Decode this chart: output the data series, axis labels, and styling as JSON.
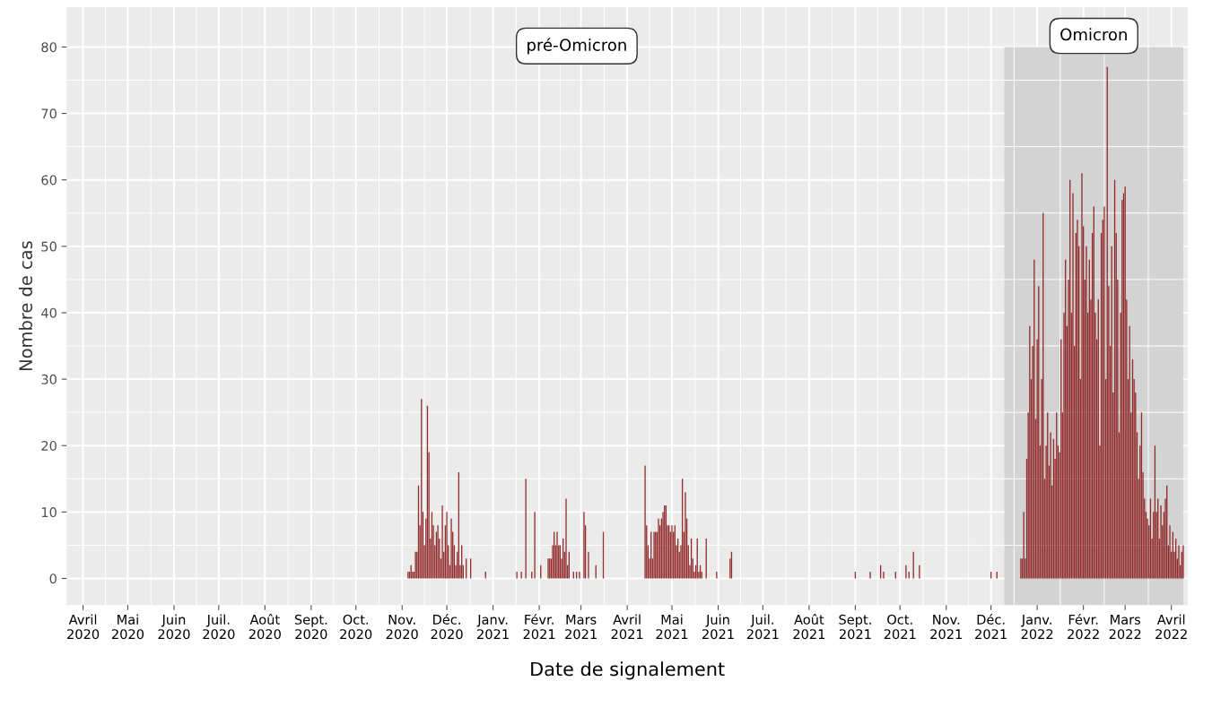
{
  "chart_data": {
    "type": "bar",
    "xlabel": "Date de signalement",
    "ylabel": "Nombre de cas",
    "annotations": [
      "pré-Omicron"
    ],
    "series": [
      {
        "color": "#8b1a1a",
        "x": [
          "2020-11-05",
          "2020-11-06",
          "2020-11-07",
          "2020-11-08",
          "2020-11-09",
          "2020-11-10",
          "2020-11-11",
          "2020-11-12",
          "2020-11-13",
          "2020-11-14",
          "2020-11-15",
          "2020-11-16",
          "2020-11-17",
          "2020-11-18",
          "2020-11-19",
          "2020-11-20",
          "2020-11-21",
          "2020-11-22",
          "2020-11-23",
          "2020-11-24",
          "2020-11-25",
          "2020-11-26",
          "2020-11-27",
          "2020-11-28",
          "2020-11-29",
          "2020-11-30",
          "2020-12-01",
          "2020-12-02",
          "2020-12-03",
          "2020-12-04",
          "2020-12-05",
          "2020-12-06",
          "2020-12-07",
          "2020-12-08",
          "2020-12-09",
          "2020-12-10",
          "2020-12-11",
          "2020-12-12",
          "2020-12-14",
          "2020-12-17",
          "2020-12-27",
          "2021-01-17",
          "2021-01-20",
          "2021-01-23",
          "2021-01-27",
          "2021-01-29",
          "2021-02-02",
          "2021-02-07",
          "2021-02-08",
          "2021-02-09",
          "2021-02-10",
          "2021-02-11",
          "2021-02-12",
          "2021-02-13",
          "2021-02-14",
          "2021-02-15",
          "2021-02-16",
          "2021-02-17",
          "2021-02-18",
          "2021-02-19",
          "2021-02-20",
          "2021-02-21",
          "2021-02-24",
          "2021-02-26",
          "2021-02-28",
          "2021-03-03",
          "2021-03-04",
          "2021-03-06",
          "2021-03-11",
          "2021-03-16",
          "2021-04-13",
          "2021-04-14",
          "2021-04-15",
          "2021-04-16",
          "2021-04-17",
          "2021-04-18",
          "2021-04-19",
          "2021-04-20",
          "2021-04-21",
          "2021-04-22",
          "2021-04-23",
          "2021-04-24",
          "2021-04-25",
          "2021-04-26",
          "2021-04-27",
          "2021-04-28",
          "2021-04-29",
          "2021-04-30",
          "2021-05-01",
          "2021-05-02",
          "2021-05-03",
          "2021-05-04",
          "2021-05-05",
          "2021-05-06",
          "2021-05-07",
          "2021-05-08",
          "2021-05-09",
          "2021-05-10",
          "2021-05-11",
          "2021-05-12",
          "2021-05-13",
          "2021-05-14",
          "2021-05-15",
          "2021-05-16",
          "2021-05-17",
          "2021-05-18",
          "2021-05-19",
          "2021-05-20",
          "2021-05-21",
          "2021-05-24",
          "2021-05-31",
          "2021-06-09",
          "2021-06-10",
          "2021-09-01",
          "2021-09-11",
          "2021-09-18",
          "2021-09-20",
          "2021-09-28",
          "2021-10-05",
          "2021-10-07",
          "2021-10-10",
          "2021-10-14",
          "2021-12-01",
          "2021-12-05",
          "2021-12-21",
          "2021-12-22",
          "2021-12-23",
          "2021-12-24",
          "2021-12-25",
          "2021-12-26",
          "2021-12-27",
          "2021-12-28",
          "2021-12-29",
          "2021-12-30",
          "2021-12-31",
          "2022-01-01",
          "2022-01-02",
          "2022-01-03",
          "2022-01-04",
          "2022-01-05",
          "2022-01-06",
          "2022-01-07",
          "2022-01-08",
          "2022-01-09",
          "2022-01-10",
          "2022-01-11",
          "2022-01-12",
          "2022-01-13",
          "2022-01-14",
          "2022-01-15",
          "2022-01-16",
          "2022-01-17",
          "2022-01-18",
          "2022-01-19",
          "2022-01-20",
          "2022-01-21",
          "2022-01-22",
          "2022-01-23",
          "2022-01-24",
          "2022-01-25",
          "2022-01-26",
          "2022-01-27",
          "2022-01-28",
          "2022-01-29",
          "2022-01-30",
          "2022-01-31",
          "2022-02-01",
          "2022-02-02",
          "2022-02-03",
          "2022-02-04",
          "2022-02-05",
          "2022-02-06",
          "2022-02-07",
          "2022-02-08",
          "2022-02-09",
          "2022-02-10",
          "2022-02-11",
          "2022-02-12",
          "2022-02-13",
          "2022-02-14",
          "2022-02-15",
          "2022-02-16",
          "2022-02-17",
          "2022-02-18",
          "2022-02-19",
          "2022-02-20",
          "2022-02-21",
          "2022-02-22",
          "2022-02-23",
          "2022-02-24",
          "2022-02-25",
          "2022-02-26",
          "2022-02-27",
          "2022-02-28",
          "2022-03-01",
          "2022-03-02",
          "2022-03-03",
          "2022-03-04",
          "2022-03-05",
          "2022-03-06",
          "2022-03-07",
          "2022-03-08",
          "2022-03-09",
          "2022-03-10",
          "2022-03-11",
          "2022-03-12",
          "2022-03-13",
          "2022-03-14",
          "2022-03-15",
          "2022-03-16",
          "2022-03-17",
          "2022-03-18",
          "2022-03-19",
          "2022-03-20",
          "2022-03-21",
          "2022-03-22",
          "2022-03-23",
          "2022-03-24",
          "2022-03-25",
          "2022-03-26",
          "2022-03-27",
          "2022-03-28",
          "2022-03-29",
          "2022-03-30",
          "2022-03-31",
          "2022-04-01",
          "2022-04-02",
          "2022-04-03",
          "2022-04-04",
          "2022-04-05",
          "2022-04-06",
          "2022-04-07",
          "2022-04-08",
          "2022-04-09"
        ],
        "values": [
          1,
          1,
          2,
          1,
          1,
          4,
          4,
          14,
          8,
          27,
          10,
          5,
          9,
          26,
          19,
          6,
          10,
          8,
          5,
          7,
          8,
          6,
          3,
          11,
          4,
          8,
          10,
          5,
          2,
          9,
          7,
          5,
          2,
          4,
          16,
          2,
          5,
          2,
          3,
          3,
          1,
          1,
          1,
          15,
          1,
          10,
          2,
          3,
          3,
          3,
          5,
          7,
          5,
          7,
          5,
          5,
          3,
          6,
          4,
          12,
          2,
          4,
          1,
          1,
          1,
          10,
          8,
          4,
          2,
          7,
          17,
          8,
          5,
          3,
          7,
          3,
          7,
          7,
          7,
          9,
          8,
          9,
          10,
          11,
          11,
          8,
          8,
          7,
          8,
          7,
          8,
          5,
          6,
          4,
          5,
          15,
          7,
          13,
          9,
          5,
          2,
          6,
          3,
          1,
          2,
          6,
          1,
          2,
          1,
          6,
          1,
          3,
          4,
          1,
          1,
          2,
          1,
          1,
          2,
          1,
          4,
          2,
          1,
          1,
          3,
          3,
          10,
          3,
          18,
          25,
          38,
          30,
          35,
          48,
          24,
          36,
          44,
          20,
          30,
          55,
          15,
          20,
          25,
          17,
          22,
          14,
          21,
          18,
          25,
          20,
          19,
          36,
          25,
          40,
          48,
          38,
          45,
          60,
          40,
          58,
          35,
          52,
          54,
          50,
          30,
          61,
          53,
          45,
          50,
          40,
          48,
          42,
          52,
          56,
          40,
          36,
          42,
          20,
          52,
          54,
          56,
          30,
          77,
          44,
          35,
          50,
          28,
          60,
          52,
          45,
          22,
          40,
          57,
          58,
          59,
          42,
          30,
          38,
          25,
          33,
          30,
          28,
          22,
          15,
          20,
          25,
          16,
          12,
          10,
          9,
          8,
          12,
          6,
          10,
          20,
          10,
          12,
          6,
          11,
          8,
          10,
          12,
          14,
          5,
          8,
          4,
          7,
          4,
          6,
          3,
          5,
          2,
          4,
          5
        ]
      }
    ],
    "bands": [
      {
        "axis": "x",
        "from": "2021-12-10",
        "to": "2022-04-09",
        "label": "Omicron",
        "color": "#d3d3d3"
      }
    ],
    "xlim": [
      "2020-03-21",
      "2022-04-12"
    ],
    "xticks": [
      {
        "value": "2020-04-01",
        "label": "Avril\n2020"
      },
      {
        "value": "2020-05-01",
        "label": "Mai\n2020"
      },
      {
        "value": "2020-06-01",
        "label": "Juin\n2020"
      },
      {
        "value": "2020-07-01",
        "label": "Juil.\n2020"
      },
      {
        "value": "2020-08-01",
        "label": "Août\n2020"
      },
      {
        "value": "2020-09-01",
        "label": "Sept.\n2020"
      },
      {
        "value": "2020-10-01",
        "label": "Oct.\n2020"
      },
      {
        "value": "2020-11-01",
        "label": "Nov.\n2020"
      },
      {
        "value": "2020-12-01",
        "label": "Déc.\n2020"
      },
      {
        "value": "2021-01-01",
        "label": "Janv.\n2021"
      },
      {
        "value": "2021-02-01",
        "label": "Févr.\n2021"
      },
      {
        "value": "2021-03-01",
        "label": "Mars\n2021"
      },
      {
        "value": "2021-04-01",
        "label": "Avril\n2021"
      },
      {
        "value": "2021-05-01",
        "label": "Mai\n2021"
      },
      {
        "value": "2021-06-01",
        "label": "Juin\n2021"
      },
      {
        "value": "2021-07-01",
        "label": "Juil.\n2021"
      },
      {
        "value": "2021-08-01",
        "label": "Août\n2021"
      },
      {
        "value": "2021-09-01",
        "label": "Sept.\n2021"
      },
      {
        "value": "2021-10-01",
        "label": "Oct.\n2021"
      },
      {
        "value": "2021-11-01",
        "label": "Nov.\n2021"
      },
      {
        "value": "2021-12-01",
        "label": "Déc.\n2021"
      },
      {
        "value": "2022-01-01",
        "label": "Janv.\n2022"
      },
      {
        "value": "2022-02-01",
        "label": "Févr.\n2022"
      },
      {
        "value": "2022-03-01",
        "label": "Mars\n2022"
      },
      {
        "value": "2022-04-01",
        "label": "Avril\n2022"
      }
    ],
    "ylim": [
      -4,
      86
    ],
    "yticks": [
      0,
      10,
      20,
      30,
      40,
      50,
      60,
      70,
      80
    ],
    "grid": true
  }
}
